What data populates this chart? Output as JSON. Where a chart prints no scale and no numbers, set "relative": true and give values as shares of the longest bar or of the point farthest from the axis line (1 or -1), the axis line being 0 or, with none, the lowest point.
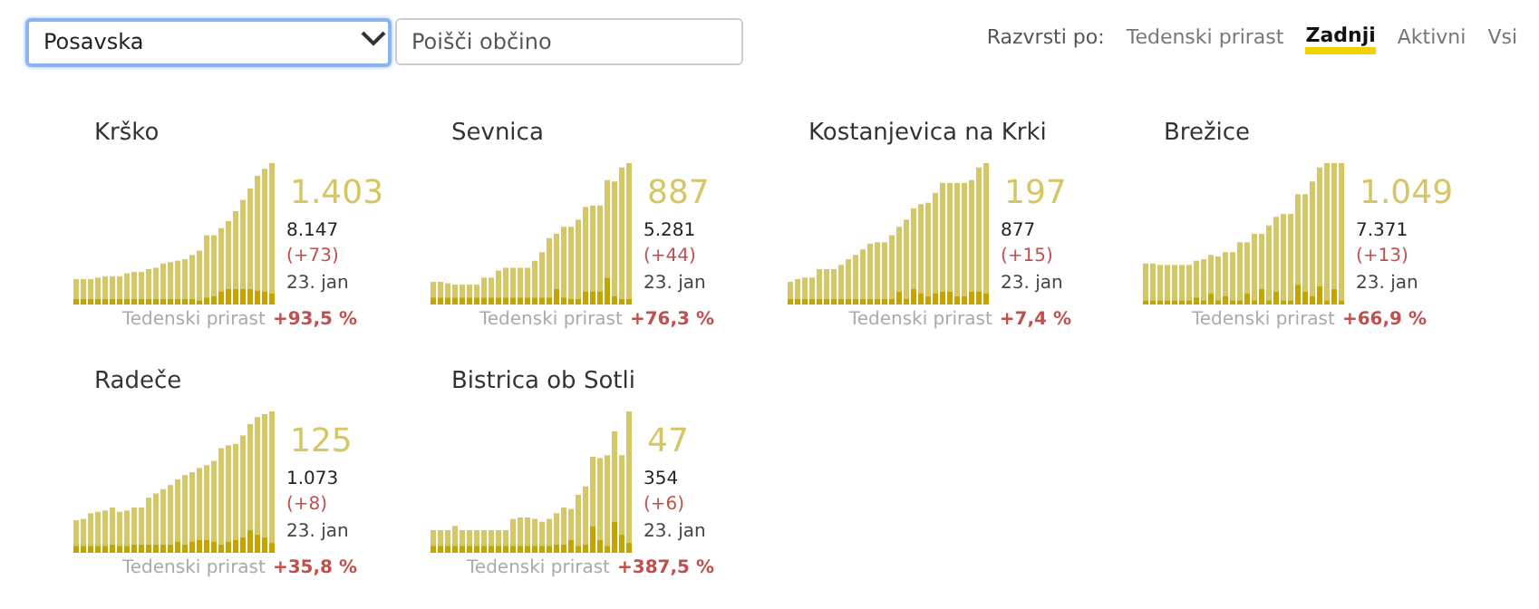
{
  "chart_data": [
    {
      "type": "other",
      "annotations": [
        "Posavska",
        "Poišči občino",
        "Razvrsti po:",
        "Tedenski prirast",
        "Zadnji",
        "Aktivni",
        "Vsi"
      ]
    },
    {
      "type": "bar",
      "title": "Krško",
      "relative": true,
      "stacked": true,
      "categories": [
        null,
        null,
        null,
        null,
        null,
        null,
        null,
        null,
        null,
        null,
        null,
        null,
        null,
        null,
        null,
        null,
        null,
        null,
        null,
        null,
        null,
        null,
        null,
        null,
        null,
        null,
        null,
        null
      ],
      "series": [
        {
          "color": "#c4a500",
          "values": [
            0.04,
            0.04,
            0.04,
            0.04,
            0.04,
            0.04,
            0.04,
            0.04,
            0.04,
            0.04,
            0.04,
            0.04,
            0.04,
            0.04,
            0.04,
            0.04,
            0.04,
            0.03,
            0.05,
            0.06,
            0.09,
            0.11,
            0.11,
            0.11,
            0.11,
            0.1,
            0.09,
            0.08
          ]
        },
        {
          "color": "#d5c666",
          "values": [
            0.14,
            0.14,
            0.14,
            0.15,
            0.16,
            0.16,
            0.16,
            0.18,
            0.19,
            0.19,
            0.21,
            0.22,
            0.25,
            0.26,
            0.27,
            0.28,
            0.31,
            0.35,
            0.44,
            0.43,
            0.45,
            0.48,
            0.55,
            0.63,
            0.71,
            0.81,
            0.87,
            0.92
          ]
        }
      ],
      "annotations": [
        "1.403",
        "8.147",
        "(+73)",
        "23. jan",
        "Tedenski prirast",
        "+93,5 %"
      ]
    },
    {
      "type": "bar",
      "title": "Sevnica",
      "relative": true,
      "stacked": true,
      "categories": [
        null,
        null,
        null,
        null,
        null,
        null,
        null,
        null,
        null,
        null,
        null,
        null,
        null,
        null,
        null,
        null,
        null,
        null,
        null,
        null,
        null,
        null,
        null,
        null,
        null,
        null,
        null,
        null
      ],
      "series": [
        {
          "color": "#c4a500",
          "values": [
            0.05,
            0.05,
            0.05,
            0.05,
            0.05,
            0.05,
            0.05,
            0.05,
            0.05,
            0.05,
            0.05,
            0.05,
            0.05,
            0.05,
            0.05,
            0.05,
            0.05,
            0.11,
            0.05,
            0.04,
            0.04,
            0.09,
            0.09,
            0.09,
            0.19,
            0.06,
            0.04,
            0.04
          ]
        },
        {
          "color": "#d5c666",
          "values": [
            0.11,
            0.11,
            0.1,
            0.09,
            0.09,
            0.09,
            0.09,
            0.14,
            0.14,
            0.19,
            0.21,
            0.21,
            0.21,
            0.21,
            0.26,
            0.32,
            0.42,
            0.39,
            0.5,
            0.51,
            0.56,
            0.6,
            0.61,
            0.61,
            0.69,
            0.81,
            0.93,
            0.96
          ]
        }
      ],
      "annotations": [
        "887",
        "5.281",
        "(+44)",
        "23. jan",
        "Tedenski prirast",
        "+76,3 %"
      ]
    },
    {
      "type": "bar",
      "title": "Kostanjevica na Krki",
      "relative": true,
      "stacked": true,
      "categories": [
        null,
        null,
        null,
        null,
        null,
        null,
        null,
        null,
        null,
        null,
        null,
        null,
        null,
        null,
        null,
        null,
        null,
        null,
        null,
        null,
        null,
        null,
        null,
        null,
        null,
        null,
        null,
        null
      ],
      "series": [
        {
          "color": "#c4a500",
          "values": [
            0.04,
            0.04,
            0.04,
            0.04,
            0.04,
            0.04,
            0.04,
            0.04,
            0.04,
            0.04,
            0.04,
            0.04,
            0.04,
            0.04,
            0.04,
            0.09,
            0.04,
            0.11,
            0.08,
            0.06,
            0.08,
            0.09,
            0.09,
            0.06,
            0.06,
            0.09,
            0.09,
            0.08
          ]
        },
        {
          "color": "#d5c666",
          "values": [
            0.12,
            0.14,
            0.15,
            0.15,
            0.21,
            0.21,
            0.21,
            0.24,
            0.28,
            0.31,
            0.35,
            0.39,
            0.4,
            0.4,
            0.45,
            0.46,
            0.56,
            0.57,
            0.63,
            0.66,
            0.71,
            0.77,
            0.77,
            0.8,
            0.8,
            0.79,
            0.88,
            0.92
          ]
        }
      ],
      "annotations": [
        "197",
        "877",
        "(+15)",
        "23. jan",
        "Tedenski prirast",
        "+7,4 %"
      ]
    },
    {
      "type": "bar",
      "title": "Brežice",
      "relative": true,
      "stacked": true,
      "categories": [
        null,
        null,
        null,
        null,
        null,
        null,
        null,
        null,
        null,
        null,
        null,
        null,
        null,
        null,
        null,
        null,
        null,
        null,
        null,
        null,
        null,
        null,
        null,
        null,
        null,
        null,
        null,
        null
      ],
      "series": [
        {
          "color": "#c4a500",
          "values": [
            0.03,
            0.03,
            0.03,
            0.03,
            0.03,
            0.03,
            0.03,
            0.05,
            0.03,
            0.08,
            0.03,
            0.06,
            0.03,
            0.03,
            0.08,
            0.03,
            0.11,
            0.03,
            0.09,
            0.03,
            0.03,
            0.14,
            0.09,
            0.06,
            0.13,
            0.03,
            0.11,
            0.03
          ]
        },
        {
          "color": "#d5c666",
          "values": [
            0.26,
            0.26,
            0.25,
            0.25,
            0.25,
            0.25,
            0.25,
            0.26,
            0.29,
            0.27,
            0.31,
            0.31,
            0.34,
            0.41,
            0.36,
            0.47,
            0.39,
            0.53,
            0.53,
            0.61,
            0.61,
            0.64,
            0.69,
            0.81,
            0.84,
            0.97,
            0.89,
            0.97
          ]
        }
      ],
      "annotations": [
        "1.049",
        "7.371",
        "(+13)",
        "23. jan",
        "Tedenski prirast",
        "+66,9 %"
      ]
    },
    {
      "type": "bar",
      "title": "Radeče",
      "relative": true,
      "stacked": true,
      "categories": [
        null,
        null,
        null,
        null,
        null,
        null,
        null,
        null,
        null,
        null,
        null,
        null,
        null,
        null,
        null,
        null,
        null,
        null,
        null,
        null,
        null,
        null,
        null,
        null,
        null,
        null,
        null,
        null
      ],
      "series": [
        {
          "color": "#c4a500",
          "values": [
            0.05,
            0.05,
            0.05,
            0.05,
            0.05,
            0.06,
            0.05,
            0.05,
            0.06,
            0.06,
            0.06,
            0.06,
            0.06,
            0.06,
            0.08,
            0.06,
            0.08,
            0.09,
            0.09,
            0.08,
            0.06,
            0.08,
            0.09,
            0.11,
            0.16,
            0.13,
            0.11,
            0.07
          ]
        },
        {
          "color": "#d5c666",
          "values": [
            0.18,
            0.19,
            0.23,
            0.24,
            0.25,
            0.26,
            0.24,
            0.25,
            0.26,
            0.26,
            0.33,
            0.36,
            0.39,
            0.42,
            0.44,
            0.49,
            0.49,
            0.51,
            0.53,
            0.57,
            0.68,
            0.68,
            0.68,
            0.72,
            0.75,
            0.83,
            0.87,
            0.93
          ]
        }
      ],
      "annotations": [
        "125",
        "1.073",
        "(+8)",
        "23. jan",
        "Tedenski prirast",
        "+35,8 %"
      ]
    },
    {
      "type": "bar",
      "title": "Bistrica ob Sotli",
      "relative": true,
      "stacked": true,
      "categories": [
        null,
        null,
        null,
        null,
        null,
        null,
        null,
        null,
        null,
        null,
        null,
        null,
        null,
        null,
        null,
        null,
        null,
        null,
        null,
        null,
        null,
        null,
        null,
        null,
        null,
        null,
        null,
        null
      ],
      "series": [
        {
          "color": "#c4a500",
          "values": [
            0.05,
            0.05,
            0.05,
            0.05,
            0.05,
            0.05,
            0.05,
            0.05,
            0.05,
            0.05,
            0.05,
            0.05,
            0.05,
            0.05,
            0.05,
            0.05,
            0.05,
            0.06,
            0.06,
            0.09,
            0.05,
            0.06,
            0.19,
            0.09,
            0.05,
            0.22,
            0.13,
            0.07
          ]
        },
        {
          "color": "#d5c666",
          "values": [
            0.11,
            0.11,
            0.11,
            0.14,
            0.11,
            0.11,
            0.11,
            0.11,
            0.11,
            0.11,
            0.11,
            0.19,
            0.2,
            0.2,
            0.19,
            0.17,
            0.19,
            0.22,
            0.26,
            0.22,
            0.36,
            0.41,
            0.49,
            0.58,
            0.64,
            0.64,
            0.56,
            0.93
          ]
        }
      ],
      "annotations": [
        "47",
        "354",
        "(+6)",
        "23. jan",
        "Tedenski prirast",
        "+387,5 %"
      ]
    }
  ]
}
